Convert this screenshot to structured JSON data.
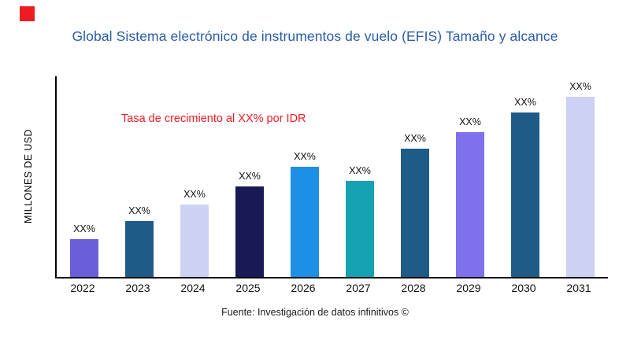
{
  "page": {
    "title_color": "#2a5caa",
    "logo_color": "#ed1c24",
    "source": "Fuente: Investigación de datos infinitivos ©"
  },
  "chart_data": {
    "type": "bar",
    "title": "Global Sistema electrónico de instrumentos de vuelo (EFIS) Tamaño y alcance",
    "ylabel": "MILLONES DE USD",
    "xlabel": "",
    "categories": [
      "2022",
      "2023",
      "2024",
      "2025",
      "2026",
      "2027",
      "2028",
      "2029",
      "2030",
      "2031"
    ],
    "values": [
      19,
      28,
      36,
      45,
      55,
      48,
      64,
      72,
      82,
      90
    ],
    "ylim": [
      0,
      100
    ],
    "bar_labels": [
      "XX%",
      "XX%",
      "XX%",
      "XX%",
      "XX%",
      "XX%",
      "XX%",
      "XX%",
      "XX%",
      "XX%"
    ],
    "bar_colors": [
      "#6a5fd8",
      "#1f5b87",
      "#cdd1f4",
      "#171a54",
      "#1d8fe6",
      "#15a3b4",
      "#1f5b87",
      "#7f71ec",
      "#1f5b87",
      "#cdd1f4"
    ],
    "grid": false,
    "legend": false,
    "annotation": {
      "text": "Tasa de crecimiento al XX% por IDR",
      "color": "#ed1c24"
    }
  }
}
